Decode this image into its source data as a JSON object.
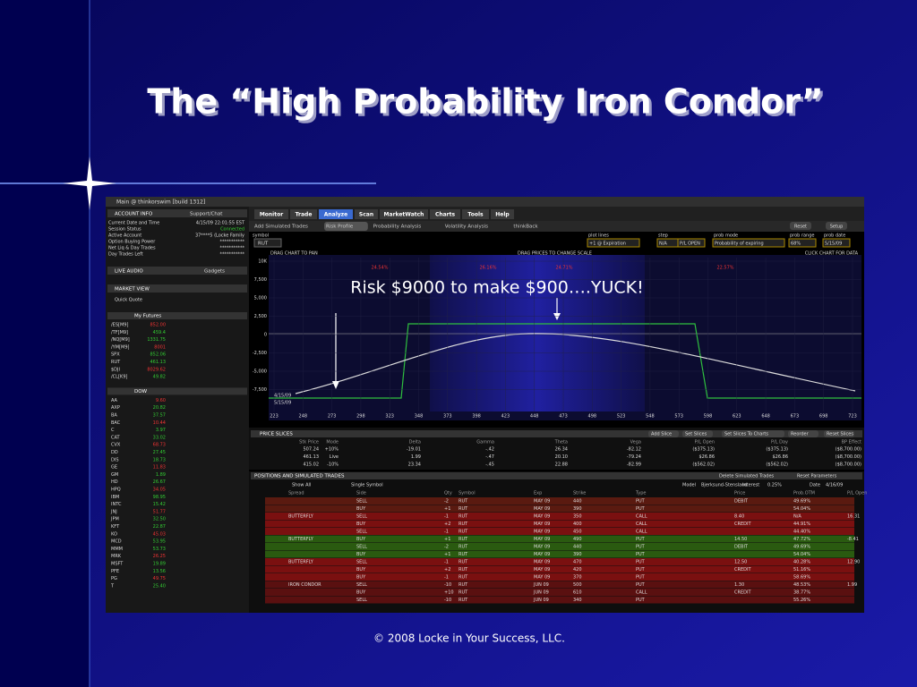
{
  "slide": {
    "title": "The “High Probability Iron Condor”",
    "annotation": "Risk $9000 to make $900….YUCK!",
    "footer": "© 2008 Locke in Your Success, LLC."
  },
  "window": {
    "title": "Main @ thinkorswim [build 1312]",
    "tabs": [
      "Monitor",
      "Trade",
      "Analyze",
      "Scan",
      "MarketWatch",
      "Charts",
      "Tools",
      "Help"
    ],
    "subtabs": [
      "Add Simulated Trades",
      "Risk Profile",
      "Probability Analysis",
      "Volatility Analysis",
      "thinkBack"
    ],
    "buttons": [
      "Reset",
      "Setup"
    ]
  },
  "account": {
    "header": "ACCOUNT INFO",
    "support": "Support/Chat",
    "rows": [
      [
        "Current Date and Time",
        "4/15/09 22:01:55 EST"
      ],
      [
        "Session Status",
        "Connected"
      ],
      [
        "Active Account",
        "37****5 (Locke Family"
      ],
      [
        "Option Buying Power",
        "***********"
      ],
      [
        "Net Liq & Day Trades",
        "***********"
      ],
      [
        "Day Trades Left",
        "***********"
      ]
    ],
    "live_audio": "LIVE AUDIO",
    "gadgets": "Gadgets",
    "market_view": "MARKET VIEW",
    "quick_quote": "Quick Quote"
  },
  "watchlists": [
    {
      "name": "My Futures",
      "rows": [
        [
          "/ES[M9]",
          "852.00"
        ],
        [
          "/TF[M9]",
          "459.4"
        ],
        [
          "/NQ[M9]",
          "1331.75"
        ],
        [
          "/YM[M9]",
          "8001"
        ],
        [
          "SPX",
          "852.06"
        ],
        [
          "RUT",
          "461.13"
        ],
        [
          "$DJI",
          "8029.62"
        ],
        [
          "/CL[K9]",
          "49.82"
        ]
      ]
    },
    {
      "name": "DOW",
      "rows": [
        [
          "AA",
          "9.60"
        ],
        [
          "AXP",
          "20.82"
        ],
        [
          "BA",
          "37.57"
        ],
        [
          "BAC",
          "10.44"
        ],
        [
          "C",
          "3.97"
        ],
        [
          "CAT",
          "33.02"
        ],
        [
          "CVX",
          "68.73"
        ],
        [
          "DD",
          "27.45"
        ],
        [
          "DIS",
          "18.73"
        ],
        [
          "GE",
          "11.83"
        ],
        [
          "GM",
          "1.89"
        ],
        [
          "HD",
          "26.67"
        ],
        [
          "HPQ",
          "34.05"
        ],
        [
          "IBM",
          "98.95"
        ],
        [
          "INTC",
          "15.42"
        ],
        [
          "JNJ",
          "51.77"
        ],
        [
          "JPM",
          "32.50"
        ],
        [
          "KFT",
          "22.87"
        ],
        [
          "KO",
          "45.03"
        ],
        [
          "MCD",
          "53.95"
        ],
        [
          "MMM",
          "53.73"
        ],
        [
          "MRK",
          "26.25"
        ],
        [
          "MSFT",
          "19.89"
        ],
        [
          "PFE",
          "13.56"
        ],
        [
          "PG",
          "49.75"
        ],
        [
          "T",
          "25.40"
        ]
      ]
    }
  ],
  "risk_profile": {
    "symbol_label": "symbol",
    "symbol": "RUT",
    "drag_pan": "DRAG CHART TO PAN",
    "drag_scale": "DRAG PRICES TO CHANGE SCALE",
    "click_chart": "CLICK CHART FOR DATA",
    "controls": [
      [
        "plot lines",
        "+1 @ Expiration"
      ],
      [
        "step",
        "N/A"
      ],
      [
        "",
        "P/L OPEN"
      ],
      [
        "prob mode",
        "Probability of expiring"
      ],
      [
        "prob range",
        "68%"
      ],
      [
        "prob date",
        "5/15/09"
      ]
    ],
    "yticks": [
      "10K",
      "7,500",
      "5,000",
      "2,500",
      "0",
      "-2,500",
      "-5,000",
      "-7,500"
    ],
    "xticks": [
      "223",
      "248",
      "273",
      "298",
      "323",
      "348",
      "373",
      "398",
      "423",
      "448",
      "473",
      "498",
      "523",
      "548",
      "573",
      "598",
      "623",
      "648",
      "673",
      "698",
      "723"
    ],
    "probabilities": [
      "24.54%",
      "26.16%",
      "24.71%",
      "22.57%"
    ],
    "date_labels": [
      "4/15/09",
      "5/15/09"
    ]
  },
  "price_slices": {
    "header": "PRICE SLICES",
    "buttons": [
      "Add Slice",
      "Set Slices",
      "Set Slices To Charts",
      "Reorder",
      "Reset Slices"
    ],
    "columns": [
      "Stk Price",
      "Mode",
      "Delta",
      "Gamma",
      "Theta",
      "Vega",
      "P/L Open",
      "P/L Day",
      "BP Effect"
    ],
    "rows": [
      [
        "507.24",
        "+10%",
        "-19.01",
        "-.42",
        "26.34",
        "-82.12",
        "($375.13)",
        "($375.13)",
        "($8,700.00)"
      ],
      [
        "461.13",
        "Live",
        "1.99",
        "-.47",
        "20.10",
        "-79.24",
        "$26.86",
        "$26.86",
        "($8,700.00)"
      ],
      [
        "415.02",
        "-10%",
        "23.34",
        "-.45",
        "22.88",
        "-82.99",
        "($562.02)",
        "($562.02)",
        "($8,700.00)"
      ]
    ]
  },
  "positions": {
    "header": "POSITIONS AND SIMULATED TRADES",
    "show": "Show All",
    "view": "Single Symbol",
    "model_label": "Model",
    "model": "Bjerksund-Stensland",
    "interest_label": "Interest",
    "interest": "0.25%",
    "date_label": "Date",
    "date": "4/16/09",
    "delete": "Delete Simulated Trades",
    "reset": "Reset Parameters",
    "columns": [
      "Spread",
      "Side",
      "Qty",
      "Symbol",
      "Exp",
      "Strike",
      "Type",
      "Price",
      "Prob.OTM",
      "P/L Open"
    ],
    "rows": [
      [
        "",
        "SELL",
        "-2",
        "RUT",
        "MAY 09",
        "440",
        "PUT",
        "DEBIT",
        "49.69%",
        ""
      ],
      [
        "",
        "BUY",
        "+1",
        "RUT",
        "MAY 09",
        "390",
        "PUT",
        "",
        "54.04%",
        ""
      ],
      [
        "BUTTERFLY",
        "SELL",
        "-1",
        "RUT",
        "MAY 09",
        "350",
        "CALL",
        "8.40",
        "N/A",
        "16.31"
      ],
      [
        "",
        "BUY",
        "+2",
        "RUT",
        "MAY 09",
        "400",
        "CALL",
        "CREDIT",
        "44.91%",
        ""
      ],
      [
        "",
        "SELL",
        "-1",
        "RUT",
        "MAY 09",
        "450",
        "CALL",
        "",
        "44.40%",
        ""
      ],
      [
        "BUTTERFLY",
        "BUY",
        "+1",
        "RUT",
        "MAY 09",
        "490",
        "PUT",
        "14.50",
        "47.72%",
        "-8.41"
      ],
      [
        "",
        "SELL",
        "-2",
        "RUT",
        "MAY 09",
        "440",
        "PUT",
        "DEBIT",
        "49.69%",
        ""
      ],
      [
        "",
        "BUY",
        "+1",
        "RUT",
        "MAY 09",
        "390",
        "PUT",
        "",
        "54.04%",
        ""
      ],
      [
        "BUTTERFLY",
        "SELL",
        "-1",
        "RUT",
        "MAY 09",
        "470",
        "PUT",
        "12.50",
        "40.28%",
        "12.90"
      ],
      [
        "",
        "BUY",
        "+2",
        "RUT",
        "MAY 09",
        "420",
        "PUT",
        "CREDIT",
        "51.16%",
        ""
      ],
      [
        "",
        "BUY",
        "-1",
        "RUT",
        "MAY 09",
        "370",
        "PUT",
        "",
        "58.69%",
        ""
      ],
      [
        "IRON CONDOR",
        "SELL",
        "-10",
        "RUT",
        "JUN 09",
        "500",
        "PUT",
        "1.30",
        "48.53%",
        "1.99"
      ],
      [
        "",
        "BUY",
        "+10",
        "RUT",
        "JUN 09",
        "610",
        "CALL",
        "CREDIT",
        "38.77%",
        ""
      ],
      [
        "",
        "SELL",
        "-10",
        "RUT",
        "JUN 09",
        "340",
        "PUT",
        "",
        "55.26%",
        ""
      ]
    ]
  }
}
